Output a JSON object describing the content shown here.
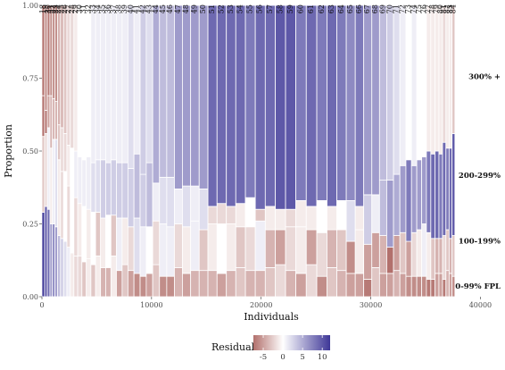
{
  "chart_data": {
    "type": "mosaic",
    "xlabel": "Individuals",
    "ylabel": "Proportion",
    "xlim": [
      0,
      42000
    ],
    "ylim": [
      0,
      1
    ],
    "x_ticks": [
      "0",
      "10000",
      "20000",
      "30000",
      "40000"
    ],
    "x_tick_values": [
      0,
      10000,
      20000,
      30000,
      40000
    ],
    "y_ticks": [
      "0.00",
      "0.25",
      "0.50",
      "0.75",
      "1.00"
    ],
    "y_tick_values": [
      0,
      0.25,
      0.5,
      0.75,
      1
    ],
    "levels": [
      "0-99% FPL",
      "100-199%",
      "200-299%",
      "300% +"
    ],
    "level_label_y": [
      0.035,
      0.19,
      0.415,
      0.755
    ],
    "legend": {
      "title": "Residuals",
      "ticks": [
        "-5",
        "0",
        "5",
        "10"
      ],
      "tick_values": [
        -5,
        0,
        5,
        10
      ],
      "range": [
        -7.5,
        12
      ],
      "colors": {
        "negative": "#b2706c",
        "zero": "#ffffff",
        "positive": "#3e3797"
      }
    },
    "ages": [
      18,
      19,
      20,
      21,
      22,
      23,
      24,
      25,
      26,
      27,
      28,
      29,
      30,
      31,
      32,
      33,
      34,
      35,
      36,
      37,
      38,
      39,
      40,
      41,
      42,
      43,
      44,
      45,
      46,
      47,
      48,
      49,
      50,
      51,
      52,
      53,
      54,
      55,
      56,
      57,
      58,
      59,
      60,
      61,
      62,
      63,
      64,
      65,
      66,
      67,
      68,
      69,
      70,
      71,
      72,
      73,
      74,
      75,
      76,
      77,
      78,
      79,
      80,
      81,
      82,
      83,
      84
    ],
    "widths": [
      250,
      240,
      235,
      230,
      240,
      240,
      260,
      280,
      300,
      310,
      330,
      350,
      380,
      400,
      420,
      430,
      450,
      470,
      480,
      500,
      520,
      530,
      550,
      560,
      560,
      590,
      620,
      660,
      700,
      730,
      750,
      780,
      800,
      830,
      850,
      860,
      880,
      900,
      910,
      920,
      930,
      940,
      950,
      960,
      930,
      900,
      860,
      820,
      770,
      740,
      700,
      660,
      620,
      580,
      550,
      510,
      480,
      450,
      430,
      400,
      380,
      360,
      330,
      310,
      290,
      270,
      260
    ],
    "proportions": [
      [
        0.29,
        0.26,
        0.14,
        0.31
      ],
      [
        0.31,
        0.25,
        0.08,
        0.36
      ],
      [
        0.3,
        0.28,
        0.11,
        0.31
      ],
      [
        0.25,
        0.26,
        0.18,
        0.31
      ],
      [
        0.25,
        0.29,
        0.14,
        0.32
      ],
      [
        0.24,
        0.3,
        0.13,
        0.33
      ],
      [
        0.21,
        0.26,
        0.12,
        0.41
      ],
      [
        0.2,
        0.23,
        0.15,
        0.42
      ],
      [
        0.19,
        0.24,
        0.13,
        0.44
      ],
      [
        0.17,
        0.21,
        0.14,
        0.48
      ],
      [
        0.15,
        0.22,
        0.14,
        0.49
      ],
      [
        0.14,
        0.2,
        0.16,
        0.5
      ],
      [
        0.14,
        0.18,
        0.16,
        0.52
      ],
      [
        0.12,
        0.19,
        0.16,
        0.53
      ],
      [
        0.13,
        0.17,
        0.18,
        0.52
      ],
      [
        0.11,
        0.18,
        0.17,
        0.54
      ],
      [
        0.14,
        0.15,
        0.18,
        0.53
      ],
      [
        0.1,
        0.17,
        0.2,
        0.53
      ],
      [
        0.1,
        0.18,
        0.18,
        0.54
      ],
      [
        0.14,
        0.14,
        0.19,
        0.53
      ],
      [
        0.09,
        0.18,
        0.19,
        0.54
      ],
      [
        0.11,
        0.16,
        0.19,
        0.54
      ],
      [
        0.09,
        0.15,
        0.2,
        0.56
      ],
      [
        0.08,
        0.19,
        0.22,
        0.51
      ],
      [
        0.07,
        0.17,
        0.18,
        0.58
      ],
      [
        0.08,
        0.16,
        0.22,
        0.54
      ],
      [
        0.11,
        0.15,
        0.13,
        0.61
      ],
      [
        0.07,
        0.18,
        0.16,
        0.59
      ],
      [
        0.07,
        0.17,
        0.17,
        0.59
      ],
      [
        0.1,
        0.15,
        0.12,
        0.63
      ],
      [
        0.08,
        0.16,
        0.14,
        0.62
      ],
      [
        0.09,
        0.17,
        0.12,
        0.62
      ],
      [
        0.09,
        0.14,
        0.14,
        0.63
      ],
      [
        0.09,
        0.16,
        0.06,
        0.69
      ],
      [
        0.08,
        0.17,
        0.07,
        0.68
      ],
      [
        0.09,
        0.16,
        0.06,
        0.69
      ],
      [
        0.1,
        0.14,
        0.08,
        0.68
      ],
      [
        0.09,
        0.15,
        0.1,
        0.66
      ],
      [
        0.09,
        0.17,
        0.04,
        0.7
      ],
      [
        0.1,
        0.13,
        0.08,
        0.69
      ],
      [
        0.11,
        0.12,
        0.07,
        0.7
      ],
      [
        0.09,
        0.15,
        0.06,
        0.7
      ],
      [
        0.08,
        0.16,
        0.09,
        0.67
      ],
      [
        0.11,
        0.12,
        0.08,
        0.69
      ],
      [
        0.07,
        0.15,
        0.11,
        0.67
      ],
      [
        0.1,
        0.13,
        0.08,
        0.69
      ],
      [
        0.09,
        0.14,
        0.1,
        0.67
      ],
      [
        0.08,
        0.11,
        0.14,
        0.67
      ],
      [
        0.08,
        0.15,
        0.08,
        0.69
      ],
      [
        0.06,
        0.12,
        0.17,
        0.65
      ],
      [
        0.1,
        0.12,
        0.13,
        0.65
      ],
      [
        0.08,
        0.13,
        0.19,
        0.6
      ],
      [
        0.08,
        0.09,
        0.23,
        0.6
      ],
      [
        0.09,
        0.12,
        0.21,
        0.58
      ],
      [
        0.08,
        0.14,
        0.23,
        0.55
      ],
      [
        0.07,
        0.12,
        0.28,
        0.53
      ],
      [
        0.07,
        0.15,
        0.23,
        0.55
      ],
      [
        0.07,
        0.16,
        0.24,
        0.53
      ],
      [
        0.07,
        0.18,
        0.23,
        0.52
      ],
      [
        0.06,
        0.16,
        0.28,
        0.5
      ],
      [
        0.06,
        0.14,
        0.29,
        0.51
      ],
      [
        0.08,
        0.12,
        0.3,
        0.5
      ],
      [
        0.08,
        0.12,
        0.29,
        0.51
      ],
      [
        0.06,
        0.15,
        0.32,
        0.47
      ],
      [
        0.09,
        0.14,
        0.28,
        0.49
      ],
      [
        0.08,
        0.12,
        0.31,
        0.49
      ],
      [
        0.07,
        0.14,
        0.35,
        0.44
      ]
    ],
    "residuals": [
      [
        12,
        -3,
        -8,
        -8
      ],
      [
        10,
        -2,
        -8,
        -6
      ],
      [
        9,
        1,
        -5,
        -7
      ],
      [
        6,
        -1,
        -4,
        -6
      ],
      [
        7,
        1,
        -4,
        -6
      ],
      [
        6,
        2,
        -4,
        -6
      ],
      [
        4,
        -1,
        -3,
        -4
      ],
      [
        3,
        -2,
        -2,
        -4
      ],
      [
        2,
        0,
        -2,
        -3
      ],
      [
        1,
        -2,
        -1,
        -2
      ],
      [
        -1,
        0,
        0,
        -2
      ],
      [
        -2,
        -2,
        1,
        -1
      ],
      [
        -2,
        -1,
        1,
        0
      ],
      [
        -3,
        0,
        1,
        0
      ],
      [
        -1,
        -1,
        1,
        0
      ],
      [
        -3,
        0,
        2,
        1
      ],
      [
        -1,
        -3,
        2,
        1
      ],
      [
        -4,
        -1,
        3,
        1
      ],
      [
        -4,
        0,
        3,
        1
      ],
      [
        -1,
        -3,
        3,
        1
      ],
      [
        -5,
        1,
        3,
        1
      ],
      [
        -3,
        -1,
        3,
        1
      ],
      [
        -5,
        -2,
        3,
        2
      ],
      [
        -6,
        2,
        4,
        1
      ],
      [
        -6,
        1,
        3,
        3
      ],
      [
        -5,
        0,
        4,
        2
      ],
      [
        -3,
        -2,
        1,
        5
      ],
      [
        -6,
        1,
        2,
        4
      ],
      [
        -6,
        1,
        2,
        4
      ],
      [
        -4,
        -2,
        1,
        6
      ],
      [
        -5,
        -1,
        2,
        6
      ],
      [
        -4,
        1,
        1,
        6
      ],
      [
        -4,
        -3,
        2,
        6
      ],
      [
        -4,
        -1,
        -2,
        9
      ],
      [
        -5,
        0,
        -2,
        9
      ],
      [
        -4,
        -1,
        -2,
        9
      ],
      [
        -3,
        -3,
        -1,
        9
      ],
      [
        -4,
        -2,
        0,
        8
      ],
      [
        -4,
        1,
        -3,
        9
      ],
      [
        -3,
        -4,
        -1,
        9
      ],
      [
        -2,
        -5,
        -1,
        10
      ],
      [
        -4,
        -2,
        -2,
        10
      ],
      [
        -5,
        -1,
        -1,
        8
      ],
      [
        -2,
        -5,
        -1,
        9
      ],
      [
        -6,
        -2,
        0,
        8
      ],
      [
        -3,
        -4,
        -1,
        9
      ],
      [
        -4,
        -3,
        0,
        8
      ],
      [
        -5,
        -6,
        2,
        7
      ],
      [
        -5,
        -1,
        -1,
        8
      ],
      [
        -7,
        -5,
        3,
        6
      ],
      [
        -3,
        -5,
        1,
        6
      ],
      [
        -5,
        -4,
        4,
        4
      ],
      [
        -5,
        -8,
        6,
        3
      ],
      [
        -4,
        -5,
        5,
        2
      ],
      [
        -5,
        -3,
        6,
        1
      ],
      [
        -6,
        -5,
        8,
        0
      ],
      [
        -6,
        -2,
        6,
        1
      ],
      [
        -6,
        -1,
        6,
        0
      ],
      [
        -6,
        1,
        6,
        0
      ],
      [
        -7,
        -1,
        8,
        -1
      ],
      [
        -7,
        -3,
        9,
        -1
      ],
      [
        -5,
        -4,
        9,
        -1
      ],
      [
        -5,
        -4,
        8,
        -1
      ],
      [
        -7,
        -2,
        9,
        -2
      ],
      [
        -4,
        -3,
        8,
        -1
      ],
      [
        -5,
        -4,
        9,
        -1
      ],
      [
        -6,
        -3,
        10,
        -3
      ]
    ]
  }
}
